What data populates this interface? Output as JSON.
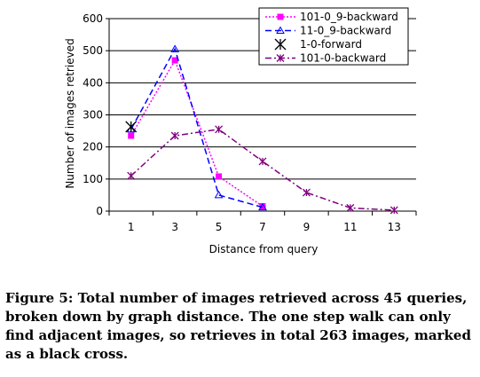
{
  "chart_data": {
    "type": "line",
    "title": "",
    "xlabel": "Distance from query",
    "ylabel": "Number of images retrieved",
    "x_ticks": [
      1,
      3,
      5,
      7,
      9,
      11,
      13
    ],
    "xlim": [
      0,
      14
    ],
    "ylim": [
      0,
      600
    ],
    "y_ticks": [
      0,
      100,
      200,
      300,
      400,
      500,
      600
    ],
    "grid": "horizontal",
    "legend_position": "top-right",
    "series": [
      {
        "name": "101-0_9-backward",
        "color": "#ff00ff",
        "line_style": "dotted",
        "marker": "square",
        "x": [
          1,
          3,
          5,
          7
        ],
        "y": [
          235,
          470,
          108,
          15
        ]
      },
      {
        "name": "11-0_9-backward",
        "color": "#0000ff",
        "line_style": "dashed",
        "marker": "triangle",
        "x": [
          1,
          3,
          5,
          7
        ],
        "y": [
          255,
          505,
          50,
          12
        ]
      },
      {
        "name": "1-0-forward",
        "color": "#000000",
        "line_style": "none",
        "marker": "star",
        "x": [
          1
        ],
        "y": [
          263
        ]
      },
      {
        "name": "101-0-backward",
        "color": "#800080",
        "line_style": "dash-dot",
        "marker": "star",
        "x": [
          1,
          3,
          5,
          7,
          9,
          11,
          13
        ],
        "y": [
          110,
          235,
          255,
          155,
          58,
          10,
          3
        ]
      }
    ]
  },
  "caption": "Figure 5: Total number of images retrieved across 45 queries, broken down by graph distance. The one step walk can only find adjacent images, so retrieves in total 263 images, marked as a black cross."
}
